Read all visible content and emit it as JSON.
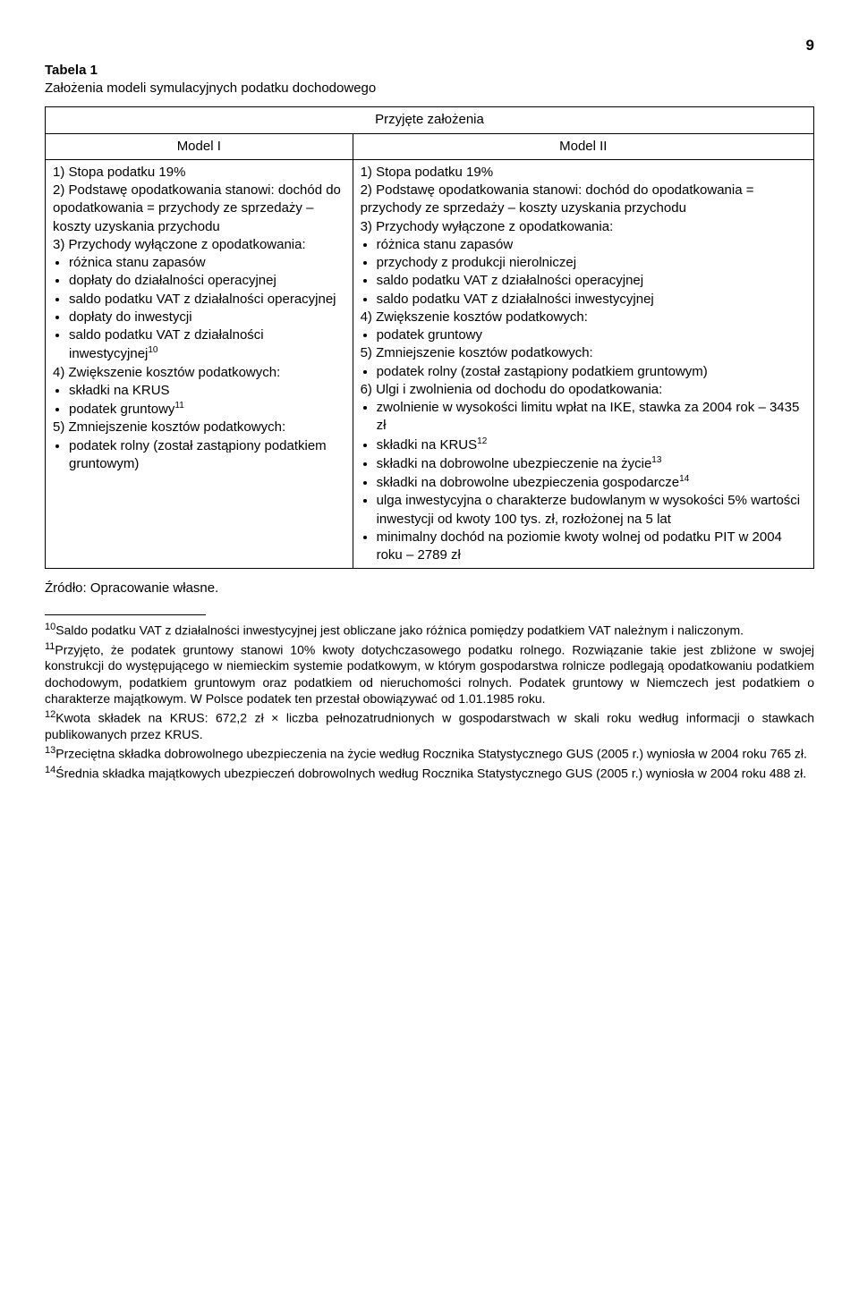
{
  "page_number": "9",
  "table_label": "Tabela 1",
  "table_title": "Założenia modeli symulacyjnych podatku dochodowego",
  "header_merged": "Przyjęte założenia",
  "subheaders": {
    "col1": "Model I",
    "col2": "Model II"
  },
  "model1": {
    "line1": "1) Stopa podatku 19%",
    "line2": "2) Podstawę opodatkowania stanowi: dochód do opodatkowania = przychody ze sprzedaży – koszty uzyskania przychodu",
    "line3": "3) Przychody wyłączone z opodatkowania:",
    "l3_items": [
      "różnica stanu zapasów",
      "dopłaty do działalności operacyjnej",
      "saldo podatku VAT z działalności operacyjnej",
      "dopłaty do inwestycji",
      "saldo podatku VAT z działalności inwestycyjnej"
    ],
    "l3_sup": "10",
    "line4": "4) Zwiększenie kosztów podatkowych:",
    "l4_items": [
      "składki na KRUS",
      "podatek gruntowy"
    ],
    "l4_sup": "11",
    "line5": "5) Zmniejszenie kosztów podatkowych:",
    "l5_items": [
      "podatek rolny (został zastąpiony podatkiem gruntowym)"
    ]
  },
  "model2": {
    "line1": "1) Stopa podatku 19%",
    "line2": "2) Podstawę opodatkowania stanowi: dochód do opodatkowania = przychody ze sprzedaży – koszty uzyskania przychodu",
    "line3": "3) Przychody wyłączone z opodatkowania:",
    "l3_items": [
      "różnica stanu zapasów",
      "przychody z produkcji nierolniczej",
      "saldo podatku VAT z działalności operacyjnej",
      "saldo podatku VAT z działalności inwestycyjnej"
    ],
    "line4": "4) Zwiększenie kosztów podatkowych:",
    "l4_items": [
      "podatek gruntowy"
    ],
    "line5": "5) Zmniejszenie kosztów podatkowych:",
    "l5_items": [
      "podatek rolny (został zastąpiony podatkiem gruntowym)"
    ],
    "line6": "6) Ulgi i zwolnienia od dochodu do opodatkowania:",
    "l6_items": [
      {
        "text": "zwolnienie w wysokości limitu wpłat na IKE, stawka za 2004 rok – 3435 zł",
        "sup": ""
      },
      {
        "text": "składki na KRUS",
        "sup": "12"
      },
      {
        "text": "składki na dobrowolne ubezpieczenie na życie",
        "sup": "13"
      },
      {
        "text": "składki na dobrowolne ubezpieczenia gospodarcze",
        "sup": "14"
      },
      {
        "text": "ulga inwestycyjna o charakterze budowlanym w wysokości 5% wartości inwestycji od kwoty 100 tys. zł, rozłożonej na 5 lat",
        "sup": ""
      },
      {
        "text": "minimalny dochód na poziomie kwoty wolnej od podatku PIT w 2004 roku – 2789 zł",
        "sup": ""
      }
    ]
  },
  "source": "Źródło: Opracowanie własne.",
  "footnotes": [
    {
      "num": "10",
      "text": "Saldo podatku VAT z działalności inwestycyjnej jest obliczane jako różnica pomiędzy podatkiem VAT należnym i naliczonym."
    },
    {
      "num": "11",
      "text": "Przyjęto, że podatek gruntowy stanowi 10% kwoty dotychczasowego podatku rolnego. Rozwiązanie takie jest zbliżone w swojej konstrukcji do występującego w niemieckim systemie podatkowym, w którym gospodarstwa rolnicze podlegają opodatkowaniu podatkiem dochodowym, podatkiem gruntowym oraz podatkiem od nieruchomości rolnych. Podatek gruntowy w Niemczech jest podatkiem o charakterze majątkowym. W Polsce podatek ten przestał obowiązywać od 1.01.1985 roku."
    },
    {
      "num": "12",
      "text": "Kwota składek na KRUS: 672,2 zł × liczba pełnozatrudnionych w gospodarstwach w skali roku według informacji o stawkach publikowanych przez KRUS."
    },
    {
      "num": "13",
      "text": "Przeciętna składka dobrowolnego ubezpieczenia na życie według Rocznika Statystycznego GUS (2005 r.) wyniosła w 2004 roku 765 zł."
    },
    {
      "num": "14",
      "text": "Średnia składka majątkowych ubezpieczeń dobrowolnych według Rocznika Statystycznego GUS (2005 r.) wyniosła w 2004 roku 488 zł."
    }
  ]
}
